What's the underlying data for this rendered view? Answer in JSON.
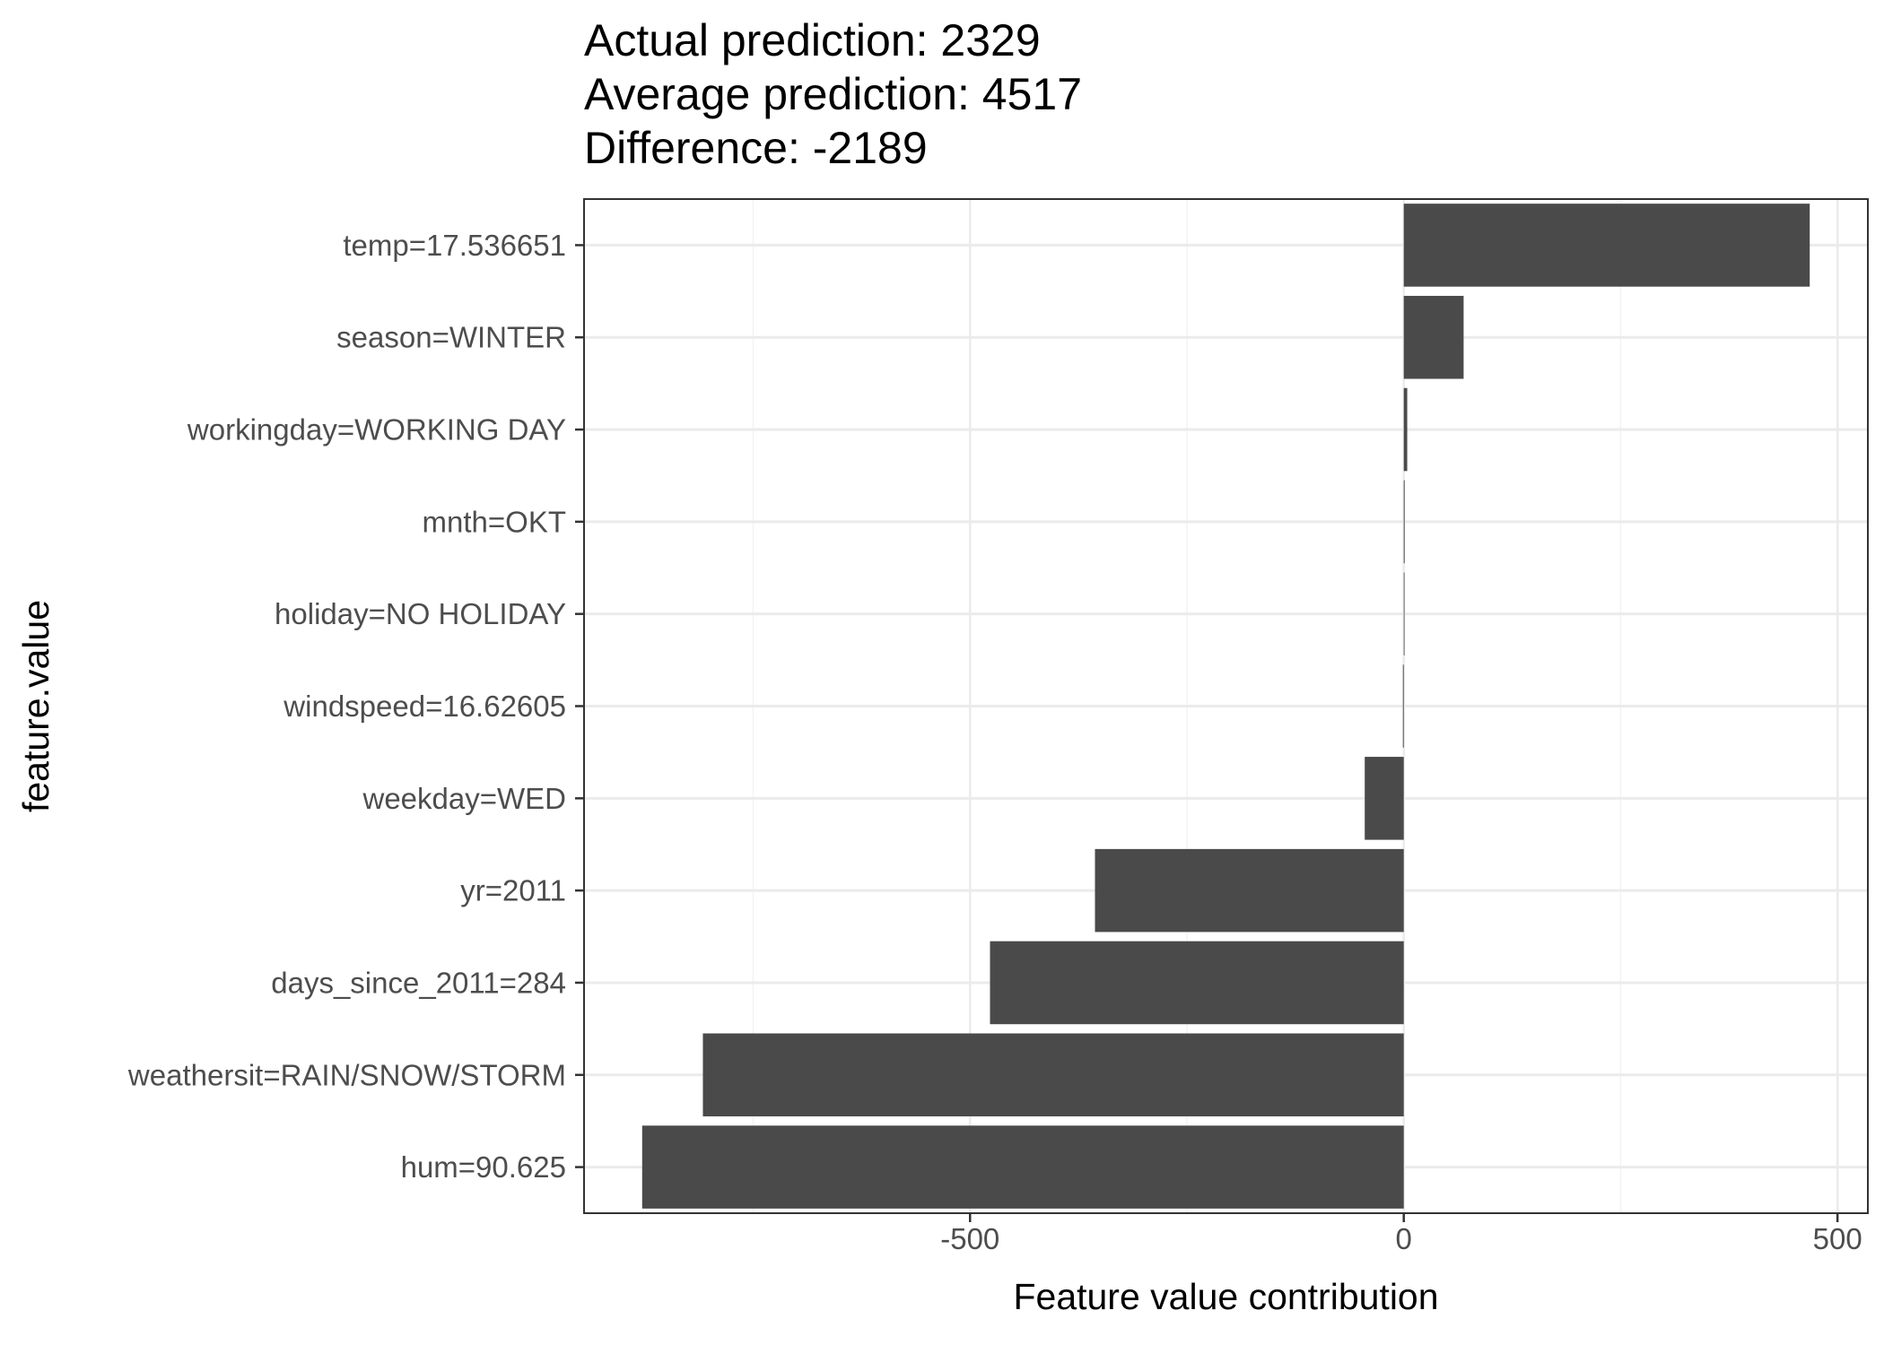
{
  "title": {
    "lines": [
      "Actual prediction: 2329",
      "Average prediction: 4517",
      "Difference: -2189"
    ]
  },
  "chart_data": {
    "type": "bar",
    "orientation": "horizontal",
    "categories": [
      "temp=17.536651",
      "season=WINTER",
      "workingday=WORKING DAY",
      "mnth=OKT",
      "holiday=NO HOLIDAY",
      "windspeed=16.62605",
      "weekday=WED",
      "yr=2011",
      "days_since_2011=284",
      "weathersit=RAIN/SNOW/STORM",
      "hum=90.625"
    ],
    "values": [
      468,
      69,
      4,
      1,
      0,
      -1,
      -45,
      -356,
      -477,
      -808,
      -878
    ],
    "xlabel": "Feature value contribution",
    "ylabel": "feature.value",
    "xlim": [
      -945,
      535
    ],
    "xticks": [
      -500,
      0,
      500
    ],
    "xtick_labels": [
      "-500",
      "0",
      "500"
    ],
    "grid": true,
    "colors": {
      "bar": "#4a4a4a",
      "grid_major": "#ebebeb",
      "grid_minor": "#f3f3f3",
      "panel_border": "#333333",
      "tick_text": "#4d4d4d"
    }
  }
}
